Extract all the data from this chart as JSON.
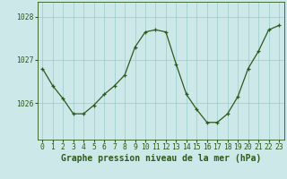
{
  "x": [
    0,
    1,
    2,
    3,
    4,
    5,
    6,
    7,
    8,
    9,
    10,
    11,
    12,
    13,
    14,
    15,
    16,
    17,
    18,
    19,
    20,
    21,
    22,
    23
  ],
  "y": [
    1026.8,
    1026.4,
    1026.1,
    1025.75,
    1025.75,
    1025.95,
    1026.2,
    1026.4,
    1026.65,
    1027.3,
    1027.65,
    1027.7,
    1027.65,
    1026.9,
    1026.2,
    1025.85,
    1025.55,
    1025.55,
    1025.75,
    1026.15,
    1026.8,
    1027.2,
    1027.7,
    1027.8
  ],
  "bg_color": "#cce8e8",
  "line_color": "#2d5a1b",
  "marker_color": "#2d5a1b",
  "grid_color": "#99cccc",
  "ylabel_ticks": [
    1026,
    1027,
    1028
  ],
  "xlabel_ticks": [
    0,
    1,
    2,
    3,
    4,
    5,
    6,
    7,
    8,
    9,
    10,
    11,
    12,
    13,
    14,
    15,
    16,
    17,
    18,
    19,
    20,
    21,
    22,
    23
  ],
  "ylim": [
    1025.15,
    1028.35
  ],
  "xlim": [
    -0.5,
    23.5
  ],
  "xlabel": "Graphe pression niveau de la mer (hPa)",
  "tick_fontsize": 5.8,
  "label_fontsize": 7.0
}
